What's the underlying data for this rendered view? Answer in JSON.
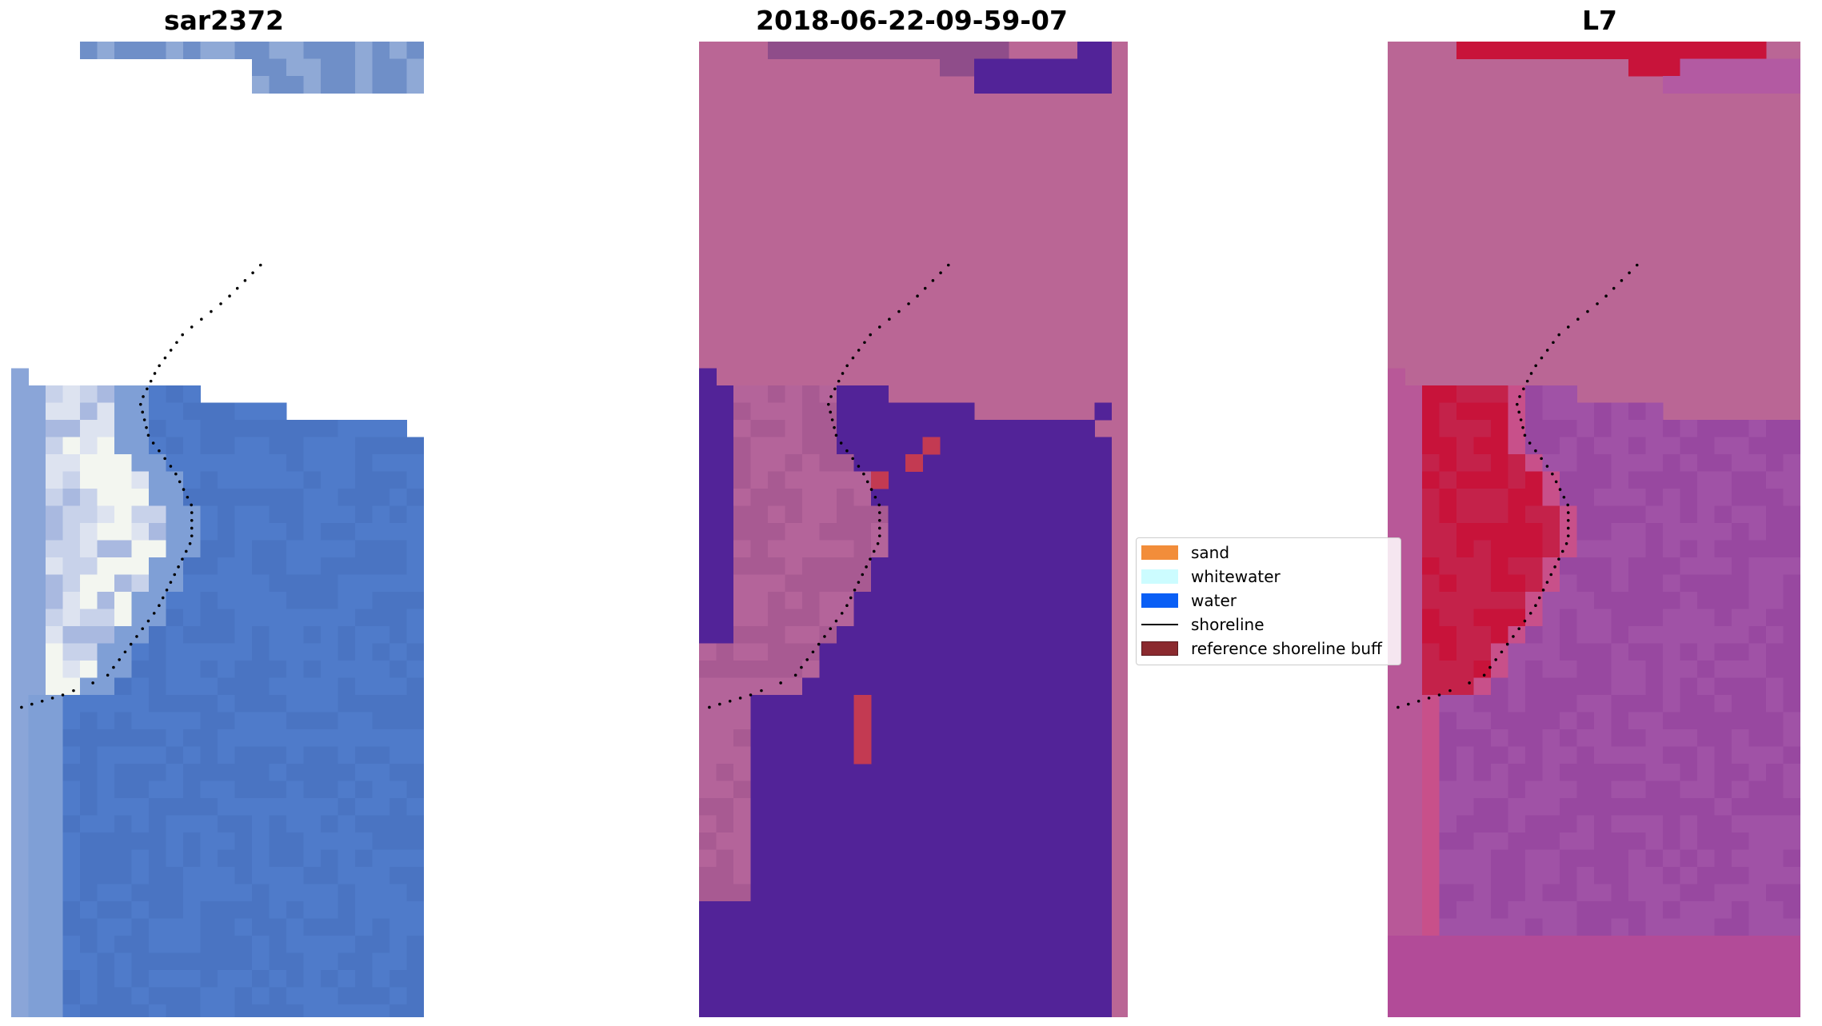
{
  "panels": [
    {
      "title": "sar2372",
      "kind": "rgb"
    },
    {
      "title": "2018-06-22-09-59-07",
      "kind": "classified"
    },
    {
      "title": "L7",
      "kind": "index"
    }
  ],
  "legend": {
    "items": [
      {
        "label": "sand",
        "color": "#f28d3a",
        "type": "patch"
      },
      {
        "label": "whitewater",
        "color": "#ccfcff",
        "type": "patch"
      },
      {
        "label": "water",
        "color": "#0a5ff5",
        "type": "patch"
      },
      {
        "label": "shoreline",
        "color": "#000000",
        "type": "line"
      },
      {
        "label": "reference shoreline buff",
        "color": "#8b2a2f",
        "type": "patch"
      }
    ]
  },
  "colors": {
    "rgb_water": "#4a74c2",
    "rgb_white": "#f3f6f0",
    "class_pink": "#ba6695",
    "class_purple": "#522398",
    "class_red": "#c33a52",
    "index_pink": "#ba6695",
    "index_red": "#c8133a",
    "index_purple": "#9848a0"
  }
}
